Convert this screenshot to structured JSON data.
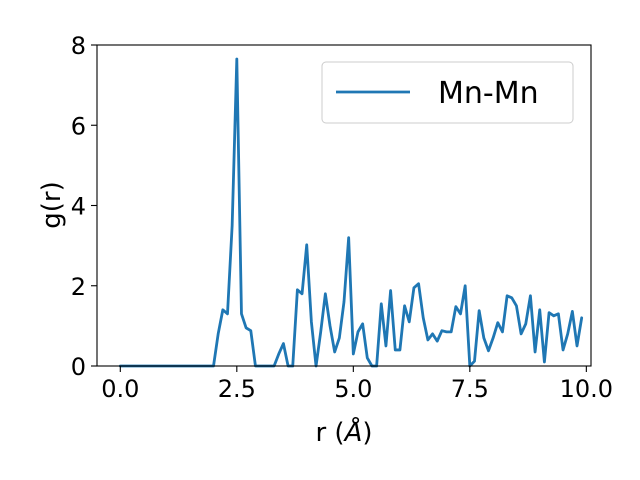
{
  "chart_data": {
    "type": "line",
    "xlabel_main": "r (",
    "xlabel_unit": "Å",
    "xlabel_close": ")",
    "ylabel": "g(r)",
    "xlim": [
      -0.5,
      10.1
    ],
    "ylim": [
      0,
      8
    ],
    "x_ticks": [
      0.0,
      2.5,
      5.0,
      7.5,
      10.0
    ],
    "x_tick_labels": [
      "0.0",
      "2.5",
      "5.0",
      "7.5",
      "10.0"
    ],
    "y_ticks": [
      0,
      2,
      4,
      6,
      8
    ],
    "y_tick_labels": [
      "0",
      "2",
      "4",
      "6",
      "8"
    ],
    "grid": false,
    "legend_position": "top-right",
    "series": [
      {
        "name": "Mn-Mn",
        "color": "#1f77b4",
        "x": [
          0.0,
          0.1,
          0.2,
          0.3,
          0.4,
          0.5,
          0.6,
          0.7,
          0.8,
          0.9,
          1.0,
          1.1,
          1.2,
          1.3,
          1.4,
          1.5,
          1.6,
          1.7,
          1.8,
          1.9,
          2.0,
          2.1,
          2.2,
          2.3,
          2.4,
          2.5,
          2.6,
          2.7,
          2.8,
          2.9,
          3.0,
          3.1,
          3.2,
          3.3,
          3.4,
          3.5,
          3.6,
          3.7,
          3.8,
          3.9,
          4.0,
          4.1,
          4.2,
          4.3,
          4.4,
          4.5,
          4.6,
          4.7,
          4.8,
          4.9,
          5.0,
          5.1,
          5.2,
          5.3,
          5.4,
          5.5,
          5.6,
          5.7,
          5.8,
          5.9,
          6.0,
          6.1,
          6.2,
          6.3,
          6.4,
          6.5,
          6.6,
          6.7,
          6.8,
          6.9,
          7.0,
          7.1,
          7.2,
          7.3,
          7.4,
          7.5,
          7.6,
          7.7,
          7.8,
          7.9,
          8.0,
          8.1,
          8.2,
          8.3,
          8.4,
          8.5,
          8.6,
          8.7,
          8.8,
          8.9,
          9.0,
          9.1,
          9.2,
          9.3,
          9.4,
          9.5,
          9.6,
          9.7,
          9.8,
          9.9
        ],
        "values": [
          0.0,
          0.0,
          0.0,
          0.0,
          0.0,
          0.0,
          0.0,
          0.0,
          0.0,
          0.0,
          0.0,
          0.0,
          0.0,
          0.0,
          0.0,
          0.0,
          0.0,
          0.0,
          0.0,
          0.0,
          0.0,
          0.8,
          1.4,
          1.3,
          3.5,
          7.65,
          1.3,
          0.95,
          0.88,
          0.0,
          0.0,
          0.0,
          0.0,
          0.0,
          0.3,
          0.56,
          0.0,
          0.0,
          1.9,
          1.8,
          3.02,
          1.1,
          0.0,
          0.85,
          1.8,
          1.0,
          0.35,
          0.7,
          1.6,
          3.2,
          0.3,
          0.85,
          1.05,
          0.2,
          0.0,
          0.0,
          1.55,
          0.5,
          1.88,
          0.4,
          0.4,
          1.5,
          1.1,
          1.95,
          2.05,
          1.2,
          0.65,
          0.8,
          0.62,
          0.88,
          0.85,
          0.85,
          1.48,
          1.3,
          2.0,
          0.0,
          0.12,
          1.38,
          0.7,
          0.38,
          0.7,
          1.08,
          0.85,
          1.75,
          1.7,
          1.5,
          0.8,
          1.05,
          1.75,
          0.35,
          1.4,
          0.1,
          1.33,
          1.25,
          1.3,
          0.4,
          0.8,
          1.36,
          0.5,
          1.2
        ]
      }
    ]
  }
}
